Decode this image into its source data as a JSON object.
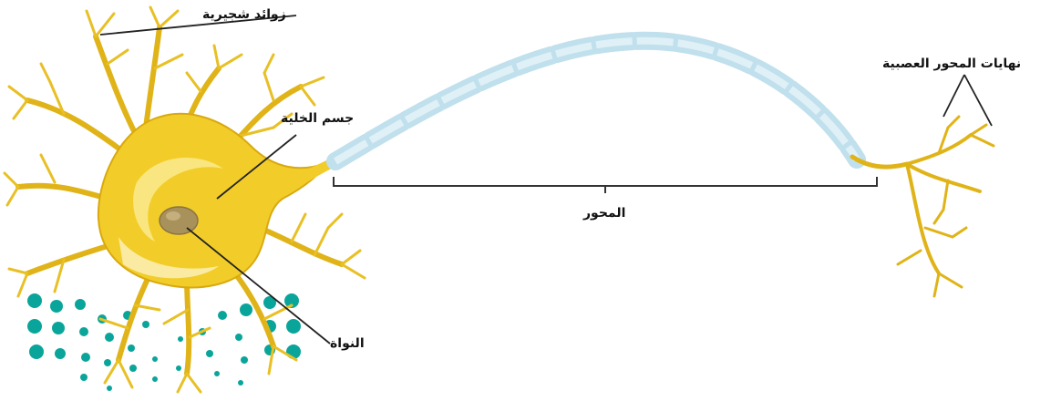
{
  "labels": {
    "dendrites": "زوائد شجيرية",
    "cell_body": "جسم الخلية",
    "nucleus": "النواة",
    "axon": "المحور",
    "axon_terminals": "نهايات المحور العصبية"
  },
  "colors": {
    "cell_fill": "#f2cd2a",
    "cell_edge": "#d9a90e",
    "cell_highlight": "#fbe98a",
    "nucleus": "#a8915a",
    "myelin": "#bfe0ec",
    "myelin_edge": "#8fc3d6",
    "node": "#e3c233",
    "dots": "#0aa59a",
    "leader_line": "#222222"
  }
}
